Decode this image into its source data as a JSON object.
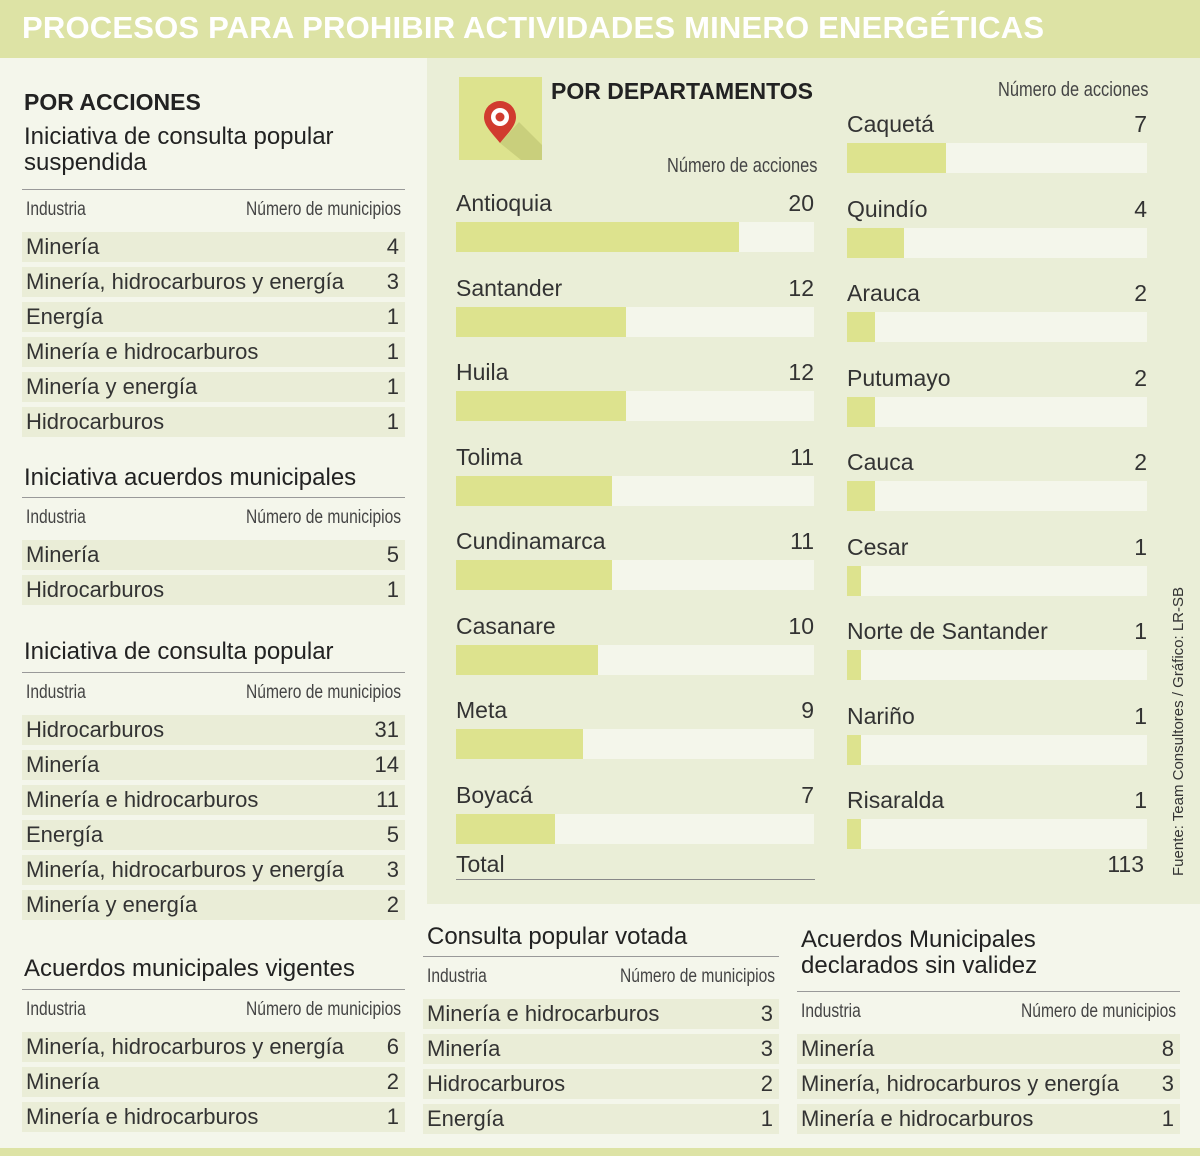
{
  "title": "PROCESOS PARA PROHIBIR ACTIVIDADES MINERO ENERGÉTICAS",
  "colors": {
    "header_bg": "#dde3a5",
    "bar_fill": "#dde38e",
    "bar_track": "#f4f6eb",
    "panel_bg": "#eaeed7"
  },
  "left": {
    "heading": "POR ACCIONES",
    "col_industria": "Industria",
    "col_numero": "Número de municipios",
    "tables": [
      {
        "title": "Iniciativa de consulta popular suspendida",
        "rows": [
          [
            "Minería",
            "4"
          ],
          [
            "Minería, hidrocarburos y energía",
            "3"
          ],
          [
            "Energía",
            "1"
          ],
          [
            "Minería e hidrocarburos",
            "1"
          ],
          [
            "Minería y energía",
            "1"
          ],
          [
            "Hidrocarburos",
            "1"
          ]
        ]
      },
      {
        "title": "Iniciativa acuerdos municipales",
        "rows": [
          [
            "Minería",
            "5"
          ],
          [
            "Hidrocarburos",
            "1"
          ]
        ]
      },
      {
        "title": "Iniciativa de consulta popular",
        "rows": [
          [
            "Hidrocarburos",
            "31"
          ],
          [
            "Minería",
            "14"
          ],
          [
            "Minería e hidrocarburos",
            "11"
          ],
          [
            "Energía",
            "5"
          ],
          [
            "Minería, hidrocarburos y energía",
            "3"
          ],
          [
            "Minería y energía",
            "2"
          ]
        ]
      },
      {
        "title": "Acuerdos municipales vigentes",
        "rows": [
          [
            "Minería, hidrocarburos y energía",
            "6"
          ],
          [
            "Minería",
            "2"
          ],
          [
            "Minería e hidrocarburos",
            "1"
          ]
        ]
      }
    ]
  },
  "bottom": {
    "tables": [
      {
        "title": "Consulta popular votada",
        "rows": [
          [
            "Minería e hidrocarburos",
            "3"
          ],
          [
            "Minería",
            "3"
          ],
          [
            "Hidrocarburos",
            "2"
          ],
          [
            "Energía",
            "1"
          ]
        ]
      },
      {
        "title": "Acuerdos Municipales declarados sin validez",
        "rows": [
          [
            "Minería",
            "8"
          ],
          [
            "Minería, hidrocarburos y energía",
            "3"
          ],
          [
            "Minería e hidrocarburos",
            "1"
          ]
        ]
      }
    ]
  },
  "chart_data": {
    "type": "bar",
    "title": "POR DEPARTAMENTOS",
    "ylabel": "Número de acciones",
    "total_label": "Total",
    "total_value": 113,
    "categories": [
      "Antioquia",
      "Santander",
      "Huila",
      "Tolima",
      "Cundinamarca",
      "Casanare",
      "Meta",
      "Boyacá",
      "Caquetá",
      "Quindío",
      "Arauca",
      "Putumayo",
      "Cauca",
      "Cesar",
      "Norte de Santander",
      "Nariño",
      "Risaralda"
    ],
    "values": [
      20,
      12,
      12,
      11,
      11,
      10,
      9,
      7,
      7,
      4,
      2,
      2,
      2,
      1,
      1,
      1,
      1
    ],
    "xlim": [
      0,
      25.3
    ]
  },
  "source": "Fuente: Team Consultores / Gráfico: LR-SB"
}
